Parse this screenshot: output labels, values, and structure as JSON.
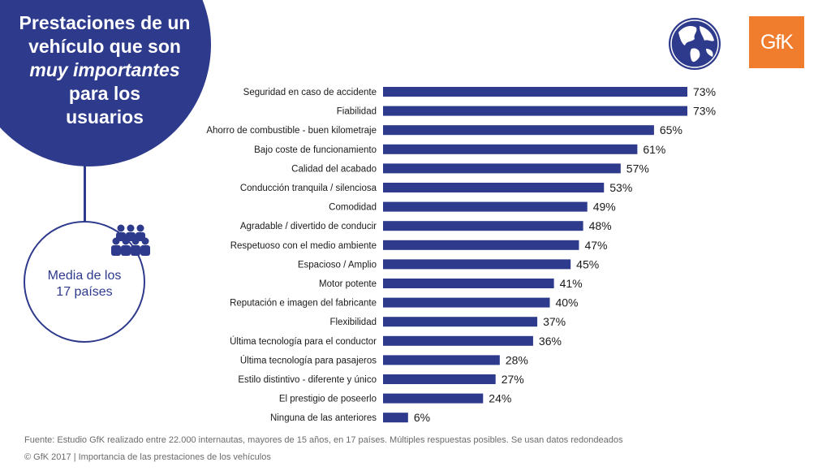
{
  "title": {
    "line1": "Prestaciones de un",
    "line2": "vehículo que son",
    "line3_italic": "muy importantes",
    "line4": "para los",
    "line5": "usuarios"
  },
  "media": {
    "line1": "Media de los",
    "line2": "17 países"
  },
  "logo_text": "GfK",
  "icons": {
    "globe": "globe-icon",
    "people": "people-group-icon"
  },
  "colors": {
    "bar": "#2e3a8c",
    "logo_bg": "#ef7d2d"
  },
  "chart_data": {
    "type": "bar",
    "orientation": "horizontal",
    "categories": [
      "Seguridad en caso de accidente",
      "Fiabilidad",
      "Ahorro de combustible - buen kilometraje",
      "Bajo coste de funcionamiento",
      "Calidad del acabado",
      "Conducción tranquila / silenciosa",
      "Comodidad",
      "Agradable / divertido de conducir",
      "Respetuoso con el medio ambiente",
      "Espacioso / Amplio",
      "Motor potente",
      "Reputación e imagen del fabricante",
      "Flexibilidad",
      "Última tecnología para el conductor",
      "Última tecnología para pasajeros",
      "Estilo distintivo - diferente y único",
      "El prestigio de poseerlo",
      "Ninguna de las anteriores"
    ],
    "values": [
      73,
      73,
      65,
      61,
      57,
      53,
      49,
      48,
      47,
      45,
      41,
      40,
      37,
      36,
      28,
      27,
      24,
      6
    ],
    "value_labels": [
      "73%",
      "73%",
      "65%",
      "61%",
      "57%",
      "53%",
      "49%",
      "48%",
      "47%",
      "45%",
      "41%",
      "40%",
      "37%",
      "36%",
      "28%",
      "27%",
      "24%",
      "6%"
    ],
    "xlim": [
      0,
      73
    ],
    "grid": false
  },
  "footer": {
    "source": "Fuente: Estudio GfK realizado entre 22.000 internautas, mayores de 15 años, en 17 países. Múltiples respuestas posibles. Se usan datos redondeados",
    "copyright": "© GfK 2017 | Importancia de las prestaciones de los vehículos"
  }
}
